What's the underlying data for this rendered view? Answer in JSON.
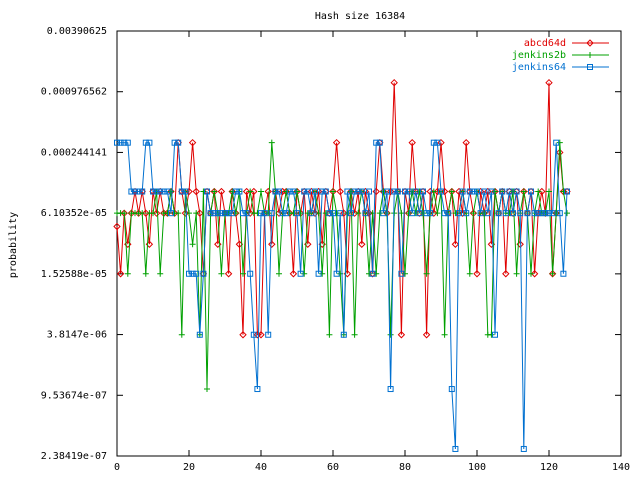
{
  "chart_data": {
    "type": "line",
    "title": "Hash size 16384",
    "xlabel": "",
    "ylabel": "probability",
    "xlim": [
      0,
      140
    ],
    "ylim": [
      2.38419e-07,
      0.00390625
    ],
    "log_y": true,
    "x_ticks": [
      "0",
      "20",
      "40",
      "60",
      "80",
      "100",
      "120",
      "140"
    ],
    "x_tick_values": [
      0,
      20,
      40,
      60,
      80,
      100,
      120,
      140
    ],
    "y_ticks": [
      "0.00390625",
      "0.000976562",
      "0.000244141",
      "6.10352e-05",
      "1.52588e-05",
      "3.8147e-06",
      "9.53674e-07",
      "2.38419e-07"
    ],
    "y_tick_values": [
      0.00390625,
      0.000976562,
      0.000244141,
      6.10352e-05,
      1.52588e-05,
      3.8147e-06,
      9.53674e-07,
      2.38419e-07
    ],
    "legend_position": "top-right",
    "grid": false,
    "series": [
      {
        "name": "abcd64d",
        "color": "#e00000",
        "marker": "diamond",
        "x": [
          0,
          1,
          2,
          3,
          4,
          5,
          6,
          7,
          8,
          9,
          10,
          11,
          12,
          13,
          14,
          15,
          16,
          17,
          18,
          19,
          20,
          21,
          22,
          23,
          24,
          25,
          26,
          27,
          28,
          29,
          30,
          31,
          32,
          33,
          34,
          35,
          36,
          37,
          38,
          39,
          40,
          41,
          42,
          43,
          44,
          45,
          46,
          47,
          48,
          49,
          50,
          51,
          52,
          53,
          54,
          55,
          56,
          57,
          58,
          59,
          60,
          61,
          62,
          63,
          64,
          65,
          66,
          67,
          68,
          69,
          70,
          71,
          72,
          73,
          74,
          75,
          76,
          77,
          78,
          79,
          80,
          81,
          82,
          83,
          84,
          85,
          86,
          87,
          88,
          89,
          90,
          91,
          92,
          93,
          94,
          95,
          96,
          97,
          98,
          99,
          100,
          101,
          102,
          103,
          104,
          105,
          106,
          107,
          108,
          109,
          110,
          111,
          112,
          113,
          114,
          115,
          116,
          117,
          118,
          119,
          120,
          121,
          122,
          123,
          124,
          125
        ],
        "y": [
          4.5e-05,
          1.53e-05,
          6.1e-05,
          3e-05,
          6.1e-05,
          0.0001,
          6.1e-05,
          0.0001,
          6.1e-05,
          3e-05,
          0.0001,
          6.1e-05,
          0.0001,
          6.1e-05,
          6.1e-05,
          0.0001,
          6.1e-05,
          0.000305,
          0.0001,
          6.1e-05,
          0.0001,
          0.000305,
          0.0001,
          6.1e-05,
          1.53e-05,
          0.0001,
          6.1e-05,
          0.0001,
          3e-05,
          0.0001,
          6.1e-05,
          1.53e-05,
          0.0001,
          6.1e-05,
          3e-05,
          3.8e-06,
          0.0001,
          6.1e-05,
          0.0001,
          3.8e-06,
          3.8e-06,
          6.1e-05,
          0.0001,
          3e-05,
          0.0001,
          6.1e-05,
          0.0001,
          0.0001,
          6.1e-05,
          1.53e-05,
          0.0001,
          6.1e-05,
          0.0001,
          3e-05,
          0.0001,
          6.1e-05,
          0.0001,
          3e-05,
          0.0001,
          6.1e-05,
          0.0001,
          0.000305,
          0.0001,
          6.1e-05,
          1.53e-05,
          0.0001,
          6.1e-05,
          0.0001,
          3e-05,
          0.0001,
          6.1e-05,
          1.53e-05,
          0.0001,
          0.000305,
          0.0001,
          6.1e-05,
          0.0001,
          0.0012,
          0.0001,
          3.8e-06,
          0.0001,
          6.1e-05,
          0.000305,
          0.0001,
          6.1e-05,
          0.0001,
          3.8e-06,
          0.0001,
          6.1e-05,
          0.0001,
          0.000305,
          0.0001,
          6.1e-05,
          0.0001,
          3e-05,
          0.0001,
          6.1e-05,
          0.000305,
          0.0001,
          6.1e-05,
          1.53e-05,
          0.0001,
          6.1e-05,
          0.0001,
          3e-05,
          0.0001,
          6.1e-05,
          0.0001,
          1.53e-05,
          0.0001,
          6.1e-05,
          0.0001,
          3e-05,
          0.0001,
          6.1e-05,
          0.0001,
          1.53e-05,
          6.1e-05,
          0.0001,
          6.1e-05,
          0.0012,
          1.53e-05,
          6.1e-05,
          0.000244,
          0.0001,
          0.0001
        ]
      },
      {
        "name": "jenkins2b",
        "color": "#00a000",
        "marker": "plus",
        "x": [
          0,
          1,
          2,
          3,
          4,
          5,
          6,
          7,
          8,
          9,
          10,
          11,
          12,
          13,
          14,
          15,
          16,
          17,
          18,
          19,
          20,
          21,
          22,
          23,
          24,
          25,
          26,
          27,
          28,
          29,
          30,
          31,
          32,
          33,
          34,
          35,
          36,
          37,
          38,
          39,
          40,
          41,
          42,
          43,
          44,
          45,
          46,
          47,
          48,
          49,
          50,
          51,
          52,
          53,
          54,
          55,
          56,
          57,
          58,
          59,
          60,
          61,
          62,
          63,
          64,
          65,
          66,
          67,
          68,
          69,
          70,
          71,
          72,
          73,
          74,
          75,
          76,
          77,
          78,
          79,
          80,
          81,
          82,
          83,
          84,
          85,
          86,
          87,
          88,
          89,
          90,
          91,
          92,
          93,
          94,
          95,
          96,
          97,
          98,
          99,
          100,
          101,
          102,
          103,
          104,
          105,
          106,
          107,
          108,
          109,
          110,
          111,
          112,
          113,
          114,
          115,
          116,
          117,
          118,
          119,
          120,
          121,
          122,
          123,
          124,
          125
        ],
        "y": [
          6.1e-05,
          6.1e-05,
          6.1e-05,
          1.53e-05,
          6.1e-05,
          6.1e-05,
          6.1e-05,
          6.1e-05,
          1.53e-05,
          6.1e-05,
          6.1e-05,
          0.0001,
          1.53e-05,
          6.1e-05,
          6.1e-05,
          0.0001,
          6.1e-05,
          6.1e-05,
          3.8e-06,
          0.0001,
          6.1e-05,
          3e-05,
          6.1e-05,
          3.8e-06,
          0.0001,
          1.1e-06,
          6.1e-05,
          0.0001,
          6.1e-05,
          1.53e-05,
          6.1e-05,
          6.1e-05,
          0.0001,
          6.1e-05,
          0.0001,
          1.53e-05,
          6.1e-05,
          0.0001,
          6.1e-05,
          6.1e-05,
          0.0001,
          6.1e-05,
          6.1e-05,
          0.000305,
          0.0001,
          1.53e-05,
          6.1e-05,
          0.0001,
          6.1e-05,
          6.1e-05,
          0.0001,
          6.1e-05,
          1.53e-05,
          6.1e-05,
          6.1e-05,
          0.0001,
          6.1e-05,
          1.53e-05,
          6.1e-05,
          3.8e-06,
          0.0001,
          6.1e-05,
          1.53e-05,
          3.8e-06,
          6.1e-05,
          0.0001,
          3.8e-06,
          6.1e-05,
          0.0001,
          6.1e-05,
          1.53e-05,
          6.1e-05,
          1.53e-05,
          6.1e-05,
          0.0001,
          6.1e-05,
          3.8e-06,
          6.1e-05,
          0.0001,
          6.1e-05,
          1.53e-05,
          6.1e-05,
          0.0001,
          6.1e-05,
          0.0001,
          6.1e-05,
          1.53e-05,
          6.1e-05,
          0.0001,
          6.1e-05,
          0.0001,
          3.8e-06,
          6.1e-05,
          0.0001,
          6.1e-05,
          6.1e-05,
          0.0001,
          6.1e-05,
          1.53e-05,
          6.1e-05,
          0.0001,
          6.1e-05,
          6.1e-05,
          3.8e-06,
          3.8e-06,
          0.0001,
          6.1e-05,
          0.0001,
          6.1e-05,
          6.1e-05,
          0.0001,
          1.53e-05,
          6.1e-05,
          0.0001,
          6.1e-05,
          1.53e-05,
          6.1e-05,
          0.0001,
          6.1e-05,
          6.1e-05,
          0.0001,
          1.53e-05,
          6.1e-05,
          0.000305,
          0.0001,
          6.1e-05
        ]
      },
      {
        "name": "jenkins64",
        "color": "#0070d0",
        "marker": "square",
        "x": [
          0,
          1,
          2,
          3,
          4,
          5,
          6,
          7,
          8,
          9,
          10,
          11,
          12,
          13,
          14,
          15,
          16,
          17,
          18,
          19,
          20,
          21,
          22,
          23,
          24,
          25,
          26,
          27,
          28,
          29,
          30,
          31,
          32,
          33,
          34,
          35,
          36,
          37,
          38,
          39,
          40,
          41,
          42,
          43,
          44,
          45,
          46,
          47,
          48,
          49,
          50,
          51,
          52,
          53,
          54,
          55,
          56,
          57,
          58,
          59,
          60,
          61,
          62,
          63,
          64,
          65,
          66,
          67,
          68,
          69,
          70,
          71,
          72,
          73,
          74,
          75,
          76,
          77,
          78,
          79,
          80,
          81,
          82,
          83,
          84,
          85,
          86,
          87,
          88,
          89,
          90,
          91,
          92,
          93,
          94,
          95,
          96,
          97,
          98,
          99,
          100,
          101,
          102,
          103,
          104,
          105,
          106,
          107,
          108,
          109,
          110,
          111,
          112,
          113,
          114,
          115,
          116,
          117,
          118,
          119,
          120,
          121,
          122,
          123,
          124,
          125
        ],
        "y": [
          0.000305,
          0.000305,
          0.000305,
          0.000305,
          0.0001,
          0.0001,
          0.0001,
          0.0001,
          0.000305,
          0.000305,
          0.0001,
          0.0001,
          0.0001,
          0.0001,
          0.0001,
          6.1e-05,
          0.000305,
          0.000305,
          0.0001,
          0.0001,
          1.53e-05,
          1.53e-05,
          1.53e-05,
          3.8e-06,
          1.53e-05,
          0.0001,
          6.1e-05,
          6.1e-05,
          6.1e-05,
          6.1e-05,
          6.1e-05,
          6.1e-05,
          6.1e-05,
          0.0001,
          0.0001,
          6.1e-05,
          6.1e-05,
          1.53e-05,
          3.8e-06,
          1.1e-06,
          6.1e-05,
          6.1e-05,
          3.8e-06,
          6.1e-05,
          0.0001,
          0.0001,
          6.1e-05,
          6.1e-05,
          0.0001,
          0.0001,
          6.1e-05,
          1.53e-05,
          0.0001,
          0.0001,
          6.1e-05,
          0.0001,
          1.53e-05,
          0.0001,
          0.0001,
          6.1e-05,
          6.1e-05,
          1.53e-05,
          6.1e-05,
          3.8e-06,
          0.0001,
          6.1e-05,
          0.0001,
          0.0001,
          0.0001,
          6.1e-05,
          0.0001,
          1.53e-05,
          0.000305,
          0.000305,
          6.1e-05,
          0.0001,
          1.1e-06,
          0.0001,
          0.0001,
          1.53e-05,
          0.0001,
          0.0001,
          6.1e-05,
          0.0001,
          6.1e-05,
          0.0001,
          6.1e-05,
          6.1e-05,
          0.000305,
          0.000305,
          0.0001,
          6.1e-05,
          6.1e-05,
          1.1e-06,
          2.8e-07,
          6.1e-05,
          0.0001,
          6.1e-05,
          0.0001,
          0.0001,
          0.0001,
          6.1e-05,
          0.0001,
          6.1e-05,
          0.0001,
          3.8e-06,
          6.1e-05,
          0.0001,
          6.1e-05,
          0.0001,
          6.1e-05,
          0.0001,
          6.1e-05,
          2.8e-07,
          6.1e-05,
          0.0001,
          6.1e-05,
          6.1e-05,
          6.1e-05,
          6.1e-05,
          6.1e-05,
          6.1e-05,
          0.000305,
          6.1e-05,
          1.53e-05,
          0.0001
        ]
      }
    ]
  }
}
